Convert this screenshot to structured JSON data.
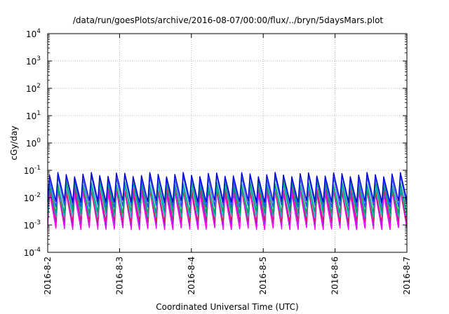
{
  "chart_data": {
    "type": "line",
    "title": "/data/run/goesPlots/archive/2016-08-07/00:00/flux/../bryn/5daysMars.plot",
    "xlabel": "Coordinated Universal Time (UTC)",
    "ylabel": "cGy/day",
    "x_scale": "time",
    "y_scale": "log",
    "xlim": [
      "2016-08-02",
      "2016-08-07"
    ],
    "ylim": [
      0.0001,
      10000
    ],
    "x_ticks": [
      "2016-8-2",
      "2016-8-3",
      "2016-8-4",
      "2016-8-5",
      "2016-8-6",
      "2016-8-7"
    ],
    "y_ticks": [
      {
        "base": "10",
        "exp": "-4"
      },
      {
        "base": "10",
        "exp": "-3"
      },
      {
        "base": "10",
        "exp": "-2"
      },
      {
        "base": "10",
        "exp": "-1"
      },
      {
        "base": "10",
        "exp": "0"
      },
      {
        "base": "10",
        "exp": "1"
      },
      {
        "base": "10",
        "exp": "2"
      },
      {
        "base": "10",
        "exp": "3"
      },
      {
        "base": "10",
        "exp": "4"
      }
    ],
    "grid": true,
    "legend": "none",
    "pattern": {
      "description_values": "sawtooth, 43 cycles over 5 days; each cycle rises sharply then decays",
      "cycles": 43
    },
    "series": [
      {
        "color": "#ff00ff",
        "peak": 0.016,
        "trough": 0.00075
      },
      {
        "color": "#a020f0",
        "peak": 0.02,
        "trough": 0.0011
      },
      {
        "color": "#cc2060",
        "peak": 0.022,
        "trough": 0.0014
      },
      {
        "color": "#00c0c0",
        "peak": 0.03,
        "trough": 0.0022
      },
      {
        "color": "#00a060",
        "peak": 0.035,
        "trough": 0.003
      },
      {
        "color": "#2050ff",
        "peak": 0.055,
        "trough": 0.005
      },
      {
        "color": "#0000cc",
        "peak": 0.07,
        "trough": 0.0075
      }
    ]
  }
}
